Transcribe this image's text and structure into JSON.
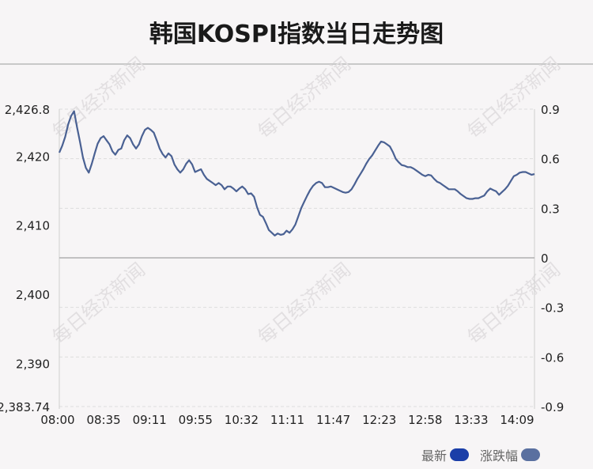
{
  "title": "韩国KOSPI指数当日走势图",
  "watermark": "每日经济新闻",
  "legend": [
    {
      "label": "最新",
      "color": "#1a3ea8"
    },
    {
      "label": "涨跌幅",
      "color": "#5a70a0"
    }
  ],
  "colors": {
    "line": "#4a6193",
    "baseline": "#b0b0b0",
    "grid": "#dddddd"
  },
  "chart_data": {
    "type": "line",
    "title": "韩国KOSPI指数当日走势图",
    "x_ticks": [
      "08:00",
      "08:35",
      "09:11",
      "09:55",
      "10:32",
      "11:11",
      "11:47",
      "12:23",
      "12:58",
      "13:33",
      "14:09"
    ],
    "y_left_ticks": [
      "2,426.8",
      "2,420",
      "2,410",
      "2,400",
      "2,390",
      "2,383.74"
    ],
    "y_right_ticks": [
      "0.9",
      "0.6",
      "0.3",
      "0",
      "-0.3",
      "-0.6",
      "-0.9"
    ],
    "ylim": [
      2383.74,
      2426.8
    ],
    "baseline": 2405.27,
    "series": [
      {
        "values": [
          2420.5,
          2421.5,
          2422.8,
          2424.6,
          2425.8,
          2426.5,
          2424.2,
          2422.1,
          2419.8,
          2418.3,
          2417.6,
          2418.9,
          2420.4,
          2421.8,
          2422.6,
          2422.9,
          2422.3,
          2421.7,
          2420.7,
          2420.2,
          2420.9,
          2421.1,
          2422.3,
          2423.0,
          2422.6,
          2421.7,
          2421.1,
          2421.7,
          2422.9,
          2423.8,
          2424.1,
          2423.8,
          2423.4,
          2422.3,
          2421.1,
          2420.3,
          2419.8,
          2420.4,
          2420.0,
          2418.8,
          2418.1,
          2417.6,
          2418.1,
          2418.9,
          2419.4,
          2418.8,
          2417.7,
          2417.9,
          2418.1,
          2417.3,
          2416.7,
          2416.4,
          2416.1,
          2415.8,
          2416.1,
          2415.8,
          2415.2,
          2415.6,
          2415.6,
          2415.3,
          2414.9,
          2415.3,
          2415.6,
          2415.2,
          2414.5,
          2414.6,
          2414.1,
          2412.6,
          2411.5,
          2411.2,
          2410.3,
          2409.3,
          2408.9,
          2408.5,
          2408.8,
          2408.6,
          2408.7,
          2409.2,
          2408.9,
          2409.4,
          2410.1,
          2411.3,
          2412.5,
          2413.4,
          2414.3,
          2415.1,
          2415.7,
          2416.1,
          2416.3,
          2416.1,
          2415.5,
          2415.5,
          2415.6,
          2415.4,
          2415.2,
          2415.0,
          2414.8,
          2414.7,
          2414.8,
          2415.2,
          2415.9,
          2416.7,
          2417.4,
          2418.1,
          2418.9,
          2419.6,
          2420.1,
          2420.8,
          2421.5,
          2422.1,
          2422.0,
          2421.7,
          2421.4,
          2420.6,
          2419.6,
          2419.1,
          2418.7,
          2418.6,
          2418.4,
          2418.4,
          2418.2,
          2417.9,
          2417.6,
          2417.3,
          2417.1,
          2417.3,
          2417.2,
          2416.7,
          2416.3,
          2416.1,
          2415.8,
          2415.5,
          2415.2,
          2415.2,
          2415.2,
          2414.9,
          2414.5,
          2414.2,
          2413.9,
          2413.8,
          2413.8,
          2413.9,
          2413.9,
          2414.1,
          2414.3,
          2414.9,
          2415.3,
          2415.1,
          2414.9,
          2414.4,
          2414.8,
          2415.2,
          2415.7,
          2416.4,
          2417.1,
          2417.3,
          2417.6,
          2417.7,
          2417.7,
          2417.5,
          2417.3,
          2417.4
        ]
      }
    ]
  }
}
